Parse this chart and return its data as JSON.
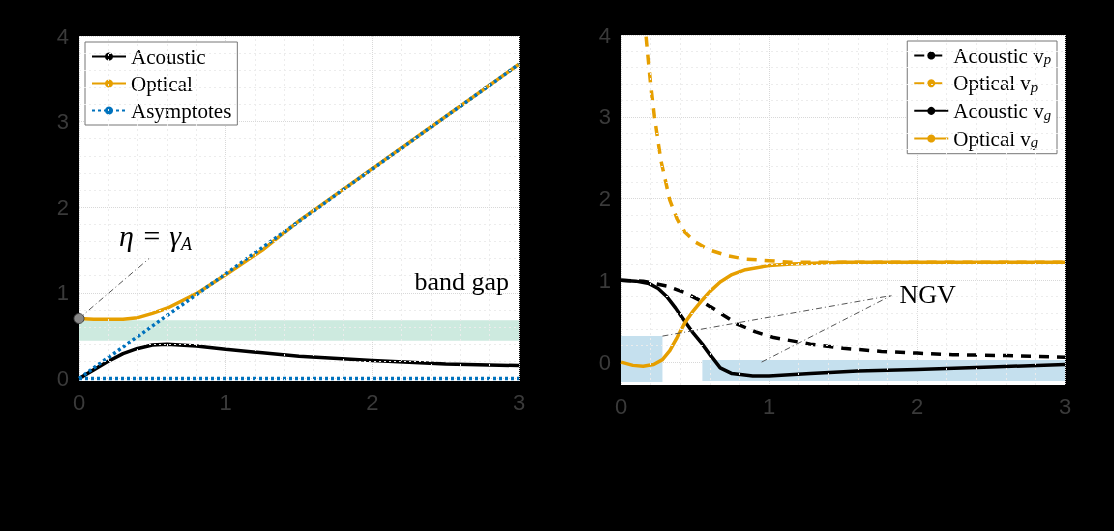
{
  "chart_data": [
    {
      "type": "line",
      "xlim": [
        0,
        3
      ],
      "xticks": [
        0,
        1,
        2,
        3
      ],
      "ylim": [
        -0.03,
        4
      ],
      "yticks": [
        0,
        1,
        2,
        3,
        4
      ],
      "grid": true,
      "legend": "top left",
      "marker": "none",
      "series": [
        {
          "name": "Acoustic",
          "color": "#000000",
          "line_style": "solid",
          "x": [
            0,
            0.1,
            0.2,
            0.3,
            0.4,
            0.5,
            0.6,
            0.8,
            1,
            1.25,
            1.5,
            2,
            2.5,
            3
          ],
          "values": [
            0,
            0.1,
            0.2,
            0.29,
            0.35,
            0.39,
            0.4,
            0.38,
            0.34,
            0.3,
            0.26,
            0.21,
            0.17,
            0.15
          ]
        },
        {
          "name": "Optical",
          "color": "#e69f00",
          "line_style": "solid",
          "x": [
            0,
            0.1,
            0.2,
            0.3,
            0.4,
            0.5,
            0.6,
            0.8,
            1,
            1.25,
            1.5,
            2,
            2.5,
            3
          ],
          "values": [
            0.7,
            0.69,
            0.69,
            0.69,
            0.71,
            0.76,
            0.82,
            0.99,
            1.21,
            1.5,
            1.84,
            2.45,
            3.06,
            3.67
          ]
        },
        {
          "name": "Asymptotes",
          "color": "#0072bd",
          "line_style": "dotted",
          "x": [
            0,
            3
          ],
          "values": [
            0,
            3.67
          ]
        },
        {
          "color": "#0072bd",
          "line_style": "dotted",
          "x": [
            0,
            3
          ],
          "values": [
            0,
            0
          ]
        }
      ],
      "bands": [
        {
          "axis": "y",
          "from": 0.44,
          "to": 0.68,
          "label": "band gap",
          "color": "#cdeadf"
        }
      ],
      "annotations": [
        {
          "text": "η = γ$_{A}$",
          "x": 0,
          "y": 0.7
        }
      ]
    },
    {
      "type": "line",
      "xlim": [
        0,
        3
      ],
      "xticks": [
        0,
        1,
        2,
        3
      ],
      "ylim": [
        -0.28,
        4
      ],
      "yticks": [
        0,
        1,
        2,
        3,
        4
      ],
      "grid": true,
      "legend": "top right",
      "marker": "none",
      "series": [
        {
          "name": "Acoustic v$_{p}$",
          "color": "#000000",
          "line_style": "dashed",
          "x": [
            0,
            0.15,
            0.31,
            0.43,
            0.55,
            0.67,
            0.79,
            0.91,
            1.03,
            1.28,
            1.5,
            1.76,
            2.0,
            2.24,
            2.6,
            3
          ],
          "values": [
            1,
            0.99,
            0.93,
            0.85,
            0.74,
            0.6,
            0.46,
            0.37,
            0.3,
            0.22,
            0.17,
            0.13,
            0.11,
            0.09,
            0.08,
            0.06
          ]
        },
        {
          "name": "Optical v$_{p}$",
          "color": "#e69f00",
          "line_style": "dashed",
          "x": [
            0.17,
            0.2,
            0.225,
            0.27,
            0.33,
            0.38,
            0.43,
            0.5,
            0.6,
            0.72,
            0.84,
            1.0,
            1.15,
            1.5,
            2,
            3
          ],
          "values": [
            3.98,
            3.4,
            3.0,
            2.46,
            1.98,
            1.75,
            1.59,
            1.47,
            1.37,
            1.3,
            1.26,
            1.24,
            1.22,
            1.22,
            1.22,
            1.22
          ]
        },
        {
          "name": "Acoustic v$_{g}$",
          "color": "#000000",
          "line_style": "solid",
          "x": [
            0,
            0.1,
            0.19,
            0.25,
            0.31,
            0.37,
            0.43,
            0.49,
            0.55,
            0.61,
            0.67,
            0.75,
            0.89,
            1.0,
            1.28,
            1.6,
            2.0,
            2.5,
            3
          ],
          "values": [
            1,
            0.99,
            0.96,
            0.9,
            0.8,
            0.66,
            0.5,
            0.35,
            0.22,
            0.07,
            -0.07,
            -0.14,
            -0.17,
            -0.17,
            -0.14,
            -0.11,
            -0.09,
            -0.06,
            -0.03
          ]
        },
        {
          "name": "Optical v$_{g}$",
          "color": "#e69f00",
          "line_style": "solid",
          "x": [
            0,
            0.08,
            0.15,
            0.22,
            0.28,
            0.33,
            0.38,
            0.43,
            0.49,
            0.55,
            0.61,
            0.67,
            0.75,
            0.84,
            1.0,
            1.15,
            1.5,
            2,
            3
          ],
          "values": [
            0,
            -0.04,
            -0.05,
            -0.03,
            0.03,
            0.14,
            0.3,
            0.48,
            0.63,
            0.76,
            0.88,
            0.98,
            1.07,
            1.13,
            1.18,
            1.2,
            1.22,
            1.22,
            1.22
          ]
        }
      ],
      "bands": [
        {
          "axis": "x",
          "from": 0,
          "to": 0.28,
          "color": "#c5e0ee"
        },
        {
          "axis": "x",
          "from": 0.55,
          "to": 3,
          "color": "#c5e0ee"
        }
      ],
      "annotations": [
        {
          "text": "NGV",
          "x": 0.95,
          "y": 0
        }
      ]
    }
  ]
}
